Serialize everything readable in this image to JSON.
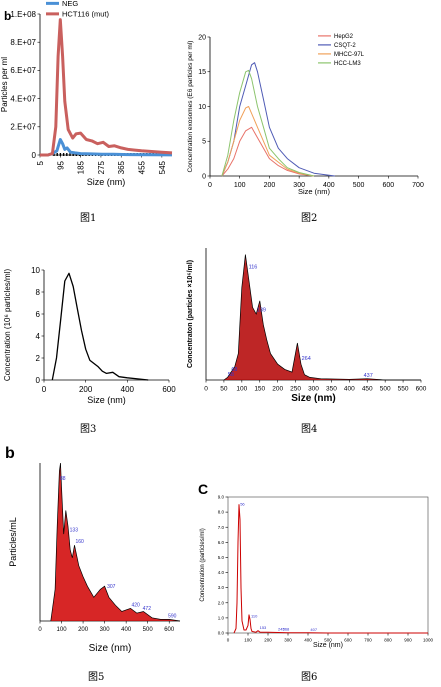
{
  "chart_data": [
    {
      "type": "line",
      "panel_letter": "b",
      "ylabel": "Particles per ml",
      "xlabel": "Size (nm)",
      "y_ticks": [
        "1.E+08",
        "8.E+07",
        "6.E+07",
        "4.E+07",
        "2.E+07",
        "0"
      ],
      "x_ticks": [
        "5",
        "95",
        "185",
        "275",
        "365",
        "455",
        "545"
      ],
      "ylim": [
        0,
        100000000
      ],
      "xlim": [
        5,
        590
      ],
      "series": [
        {
          "name": "NEG",
          "color": "#4a90d6",
          "x": [
            5,
            40,
            60,
            80,
            95,
            105,
            115,
            125,
            140,
            160,
            185,
            230,
            280,
            330,
            400,
            500,
            590
          ],
          "y": [
            0,
            0,
            1000000,
            3000000,
            11000000,
            8000000,
            4000000,
            5000000,
            2000000,
            1500000,
            1000000,
            800000,
            600000,
            500000,
            300000,
            200000,
            100000
          ]
        },
        {
          "name": "HCT116 (mut)",
          "color": "#c9605e",
          "x": [
            5,
            40,
            60,
            75,
            85,
            95,
            105,
            115,
            130,
            150,
            165,
            185,
            210,
            235,
            260,
            285,
            310,
            335,
            365,
            395,
            425,
            455,
            500,
            545,
            590
          ],
          "y": [
            0,
            0,
            1000000,
            20000000,
            70000000,
            96000000,
            70000000,
            38000000,
            18000000,
            12000000,
            15000000,
            15500000,
            11000000,
            10000000,
            8000000,
            9000000,
            6000000,
            6500000,
            5000000,
            4000000,
            3500000,
            3000000,
            2500000,
            2000000,
            1500000
          ]
        }
      ]
    },
    {
      "type": "line",
      "ylabel": "Concentration exosomes (E6 particles per ml)",
      "xlabel": "Size (nm)",
      "y_ticks": [
        "20",
        "15",
        "10",
        "5",
        "0"
      ],
      "x_ticks": [
        "0",
        "100",
        "200",
        "300",
        "400",
        "500",
        "600",
        "700"
      ],
      "ylim": [
        0,
        20
      ],
      "xlim": [
        0,
        700
      ],
      "series": [
        {
          "name": "HepG2",
          "color": "#e8736a",
          "x": [
            40,
            60,
            80,
            100,
            120,
            140,
            160,
            180,
            200,
            230,
            260,
            300,
            350
          ],
          "y": [
            0,
            1,
            2.5,
            5,
            6.5,
            7,
            5.5,
            4,
            2.5,
            1.5,
            0.8,
            0.3,
            0
          ]
        },
        {
          "name": "CSQT-2",
          "color": "#4f5bb5",
          "x": [
            40,
            60,
            80,
            100,
            120,
            140,
            150,
            160,
            180,
            200,
            230,
            260,
            300,
            350,
            420
          ],
          "y": [
            0,
            2,
            5,
            10,
            13,
            16,
            16.3,
            15,
            11,
            7,
            4,
            2.5,
            1.2,
            0.4,
            0
          ]
        },
        {
          "name": "MHCC-97L",
          "color": "#f0a15a",
          "x": [
            40,
            60,
            80,
            100,
            120,
            130,
            140,
            160,
            180,
            200,
            230,
            260,
            300,
            350
          ],
          "y": [
            0,
            2,
            5,
            8,
            9.8,
            10,
            9,
            7,
            5,
            3,
            2,
            1,
            0.4,
            0
          ]
        },
        {
          "name": "HCC-LM3",
          "color": "#8cc46d",
          "x": [
            40,
            60,
            80,
            100,
            120,
            130,
            140,
            160,
            180,
            200,
            230,
            260,
            300,
            350
          ],
          "y": [
            0,
            3,
            8,
            12,
            15,
            15.2,
            14,
            10,
            7,
            4,
            2.5,
            1.2,
            0.5,
            0
          ]
        }
      ]
    },
    {
      "type": "line",
      "ylabel": "Concentration (10⁶ particles/ml)",
      "xlabel": "Size (nm)",
      "y_ticks": [
        "10",
        "8",
        "6",
        "4",
        "2",
        "0"
      ],
      "x_ticks": [
        "0",
        "200",
        "400",
        "600"
      ],
      "ylim": [
        0,
        10
      ],
      "xlim": [
        0,
        600
      ],
      "series": [
        {
          "name": "",
          "color": "#000000",
          "x": [
            40,
            60,
            80,
            100,
            120,
            140,
            160,
            180,
            200,
            220,
            240,
            260,
            280,
            300,
            330,
            360,
            400,
            450,
            500
          ],
          "y": [
            0,
            2,
            5.5,
            9,
            9.7,
            8.5,
            6.5,
            4.5,
            2.8,
            1.8,
            1.5,
            1.2,
            0.8,
            0.6,
            0.7,
            0.3,
            0.2,
            0.1,
            0
          ]
        }
      ]
    },
    {
      "type": "area",
      "ylabel": "Concentraton (particles ×10⁶/ml)",
      "xlabel": "Size (nm)",
      "x_ticks": [
        "0",
        "50",
        "100",
        "150",
        "200",
        "250",
        "300",
        "350",
        "400",
        "450",
        "500",
        "550",
        "600"
      ],
      "xlim": [
        0,
        600
      ],
      "ylim": [
        0,
        1
      ],
      "peak_labels": [
        "58",
        "68",
        "116",
        "139",
        "264",
        "437"
      ],
      "series": [
        {
          "name": "",
          "color": "#b30000",
          "x": [
            50,
            60,
            70,
            80,
            90,
            100,
            110,
            120,
            130,
            140,
            150,
            160,
            170,
            180,
            200,
            220,
            240,
            255,
            265,
            275,
            290,
            320,
            400,
            450,
            500,
            600
          ],
          "y": [
            0,
            0.02,
            0.06,
            0.1,
            0.2,
            0.7,
            0.95,
            0.75,
            0.55,
            0.5,
            0.6,
            0.42,
            0.3,
            0.2,
            0.12,
            0.08,
            0.06,
            0.28,
            0.12,
            0.04,
            0.02,
            0.01,
            0.005,
            0.01,
            0,
            0
          ]
        }
      ]
    },
    {
      "type": "area",
      "panel_letter": "b",
      "ylabel": "Particles/mL",
      "xlabel": "Size (nm)",
      "x_ticks": [
        "0",
        "100",
        "200",
        "300",
        "400",
        "500",
        "600"
      ],
      "xlim": [
        0,
        650
      ],
      "ylim": [
        0,
        1
      ],
      "peak_labels": [
        "88",
        "133",
        "160",
        "307",
        "420",
        "472",
        "590"
      ],
      "series": [
        {
          "name": "",
          "color": "#d00000",
          "x": [
            50,
            70,
            80,
            90,
            95,
            100,
            110,
            120,
            130,
            140,
            150,
            160,
            180,
            200,
            220,
            250,
            280,
            300,
            320,
            350,
            380,
            420,
            450,
            480,
            520,
            560,
            600,
            650
          ],
          "y": [
            0,
            0.2,
            0.6,
            0.95,
            1,
            0.85,
            0.55,
            0.7,
            0.6,
            0.45,
            0.4,
            0.48,
            0.35,
            0.28,
            0.22,
            0.15,
            0.2,
            0.22,
            0.15,
            0.1,
            0.06,
            0.08,
            0.05,
            0.06,
            0.02,
            0.01,
            0.01,
            0
          ]
        }
      ]
    },
    {
      "type": "line",
      "panel_letter": "C",
      "ylabel": "Concentration (particles/ml)",
      "xlabel": "Size (nm)",
      "y_ticks": [
        "9.0",
        "8.0",
        "7.0",
        "6.0",
        "5.0",
        "4.0",
        "3.0",
        "2.0",
        "1.0",
        "0.0"
      ],
      "x_ticks": [
        "0",
        "100",
        "200",
        "300",
        "400",
        "500",
        "600",
        "700",
        "800",
        "900",
        "1000"
      ],
      "ylim": [
        0,
        9
      ],
      "xlim": [
        0,
        1000
      ],
      "peak_labels": [
        "56",
        "110",
        "153",
        "245",
        "268",
        "407"
      ],
      "series": [
        {
          "name": "",
          "color": "#cc0000",
          "x": [
            30,
            40,
            45,
            50,
            55,
            60,
            65,
            70,
            80,
            90,
            100,
            105,
            110,
            115,
            120,
            140,
            150,
            160,
            200,
            250,
            300,
            400,
            500,
            600,
            800,
            1000
          ],
          "y": [
            0,
            0.3,
            2,
            6,
            8.5,
            7.5,
            3,
            0.8,
            0.2,
            0.2,
            0.5,
            1.2,
            0.9,
            0.3,
            0.1,
            0.05,
            0.15,
            0.05,
            0.05,
            0.03,
            0.02,
            0.01,
            0,
            0,
            0,
            0
          ]
        }
      ]
    }
  ],
  "captions": [
    "图1",
    "图2",
    "图3",
    "图4",
    "图5",
    "图6"
  ]
}
